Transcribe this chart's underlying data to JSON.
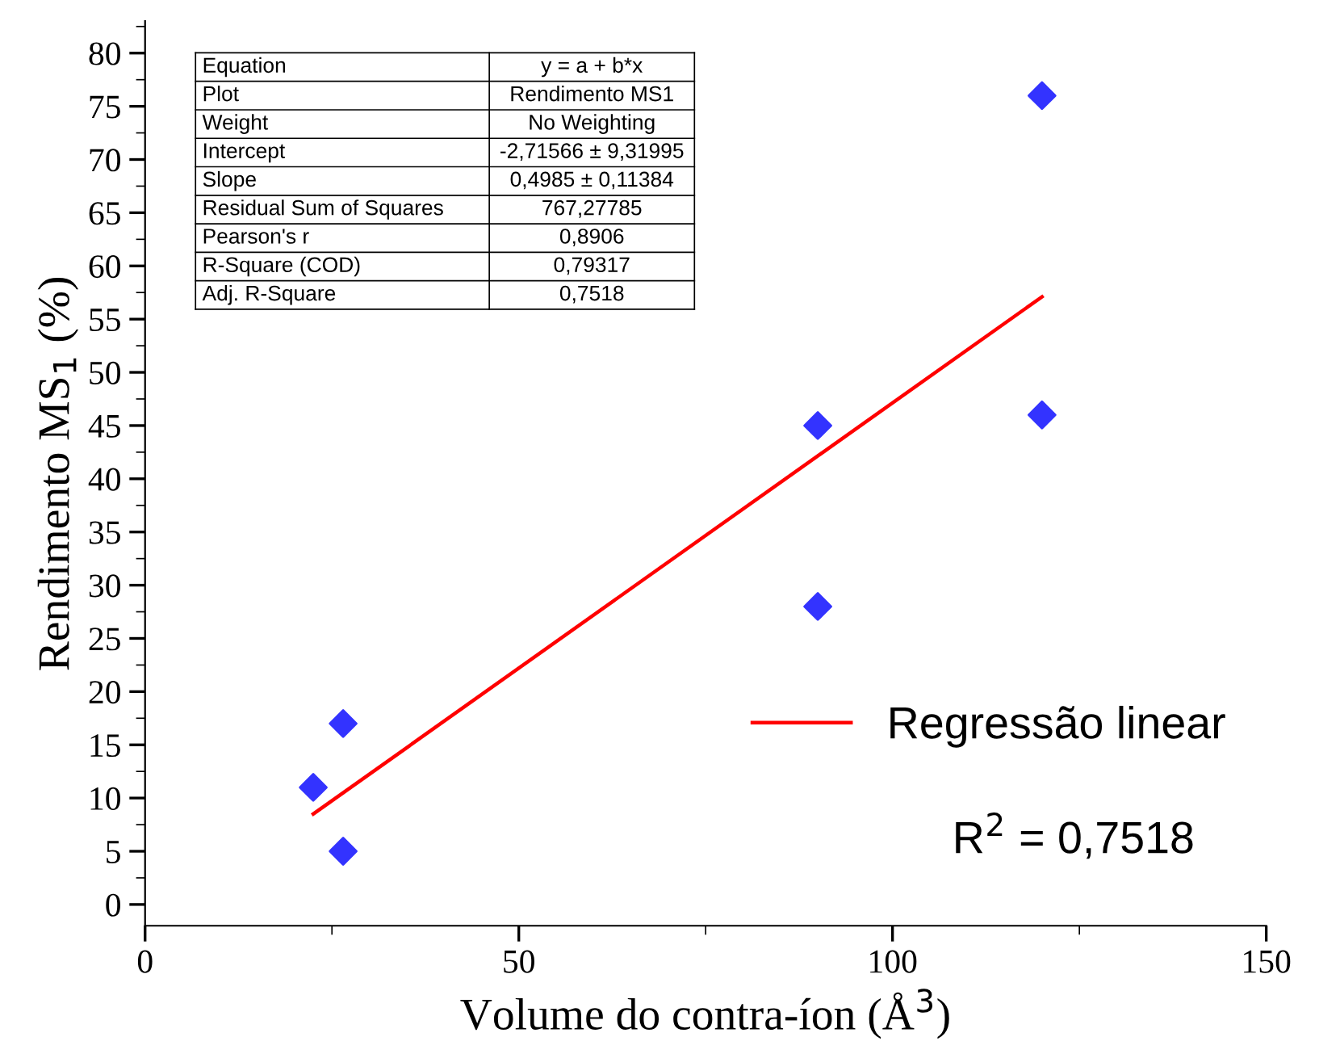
{
  "chart_data": {
    "type": "scatter",
    "xlabel": "Volume do contra-íon (Å$^{3}$)",
    "ylabel": "Rendimento MS$_{1}$ (%)",
    "series": [
      {
        "color": "#3333ff",
        "marker": "diamond",
        "x": [
          22.5,
          26.5,
          26.5,
          90,
          90,
          120,
          120
        ],
        "values": [
          11,
          17,
          5,
          45,
          28,
          76,
          46
        ]
      },
      {
        "type": "line",
        "name": "Regressão linear",
        "color": "#ff0000",
        "x": [
          22.5,
          120
        ],
        "values": [
          8.5,
          57.1
        ]
      }
    ],
    "xlim": [
      0,
      150
    ],
    "xticks": [
      0,
      50,
      100,
      150
    ],
    "ylim": [
      -2,
      83
    ],
    "yticks": [
      0,
      5,
      10,
      15,
      20,
      25,
      30,
      35,
      40,
      45,
      50,
      55,
      60,
      65,
      70,
      75,
      80
    ],
    "legend": "right",
    "grid": false,
    "annotations": [
      "Equation",
      "y = a + b*x",
      "Plot",
      "Rendimento MS1",
      "Weight",
      "No Weighting",
      "Intercept",
      "-2,71566 ± 9,31995",
      "Slope",
      "0,4985 ± 0,11384",
      "Residual Sum of Squares",
      "767,27785",
      "Pearson's r",
      "0,8906",
      "R-Square (COD)",
      "0,79317",
      "Adj. R-Square",
      "0,7518",
      {
        "text": "R$^{2}$ = 0,7518"
      }
    ]
  }
}
